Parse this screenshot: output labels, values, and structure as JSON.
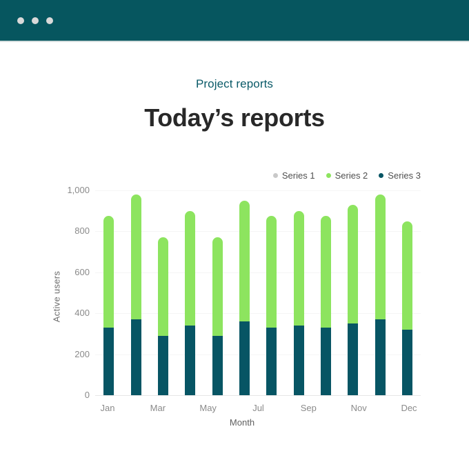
{
  "header": {
    "window_dots": 3,
    "dot_color": "#D9D9D9",
    "background": "#06565F"
  },
  "page": {
    "eyebrow": "Project reports",
    "title": "Today’s reports"
  },
  "chart_data": {
    "type": "bar",
    "stacked": true,
    "title": "Today’s reports",
    "xlabel": "Month",
    "ylabel": "Active users",
    "ylim": [
      0,
      1000
    ],
    "yticks": [
      0,
      200,
      400,
      600,
      800,
      1000
    ],
    "ytick_labels": [
      "0",
      "200",
      "400",
      "600",
      "800",
      "1,000"
    ],
    "categories": [
      "Jan",
      "Feb",
      "Mar",
      "Apr",
      "May",
      "Jun",
      "Jul",
      "Aug",
      "Sep",
      "Oct",
      "Nov",
      "Dec"
    ],
    "xtick_labels": [
      "Jan",
      "Mar",
      "May",
      "Jul",
      "Sep",
      "Nov",
      "Dec"
    ],
    "grid": true,
    "legend_position": "top-right",
    "series": [
      {
        "name": "Series 1",
        "color": "#C9C9C9",
        "values": [
          0,
          0,
          0,
          0,
          0,
          0,
          0,
          0,
          0,
          0,
          0,
          0
        ]
      },
      {
        "name": "Series 2",
        "color": "#8DE45F",
        "values": [
          545,
          610,
          480,
          560,
          480,
          590,
          545,
          560,
          545,
          580,
          610,
          530
        ]
      },
      {
        "name": "Series 3",
        "color": "#075564",
        "values": [
          330,
          370,
          290,
          340,
          290,
          360,
          330,
          340,
          330,
          350,
          370,
          320
        ]
      }
    ],
    "stack_bottom_to_top": [
      2,
      1,
      0
    ],
    "totals": [
      875,
      980,
      770,
      900,
      770,
      950,
      875,
      900,
      875,
      930,
      980,
      850
    ]
  },
  "colors": {
    "grid": "#F5F5F5",
    "axis_line": "#E6E6E6",
    "tick_text": "#8A8A8A",
    "eyebrow_text": "#0A5A68",
    "title_text": "#282828",
    "legend_text": "#4F4F4F"
  }
}
